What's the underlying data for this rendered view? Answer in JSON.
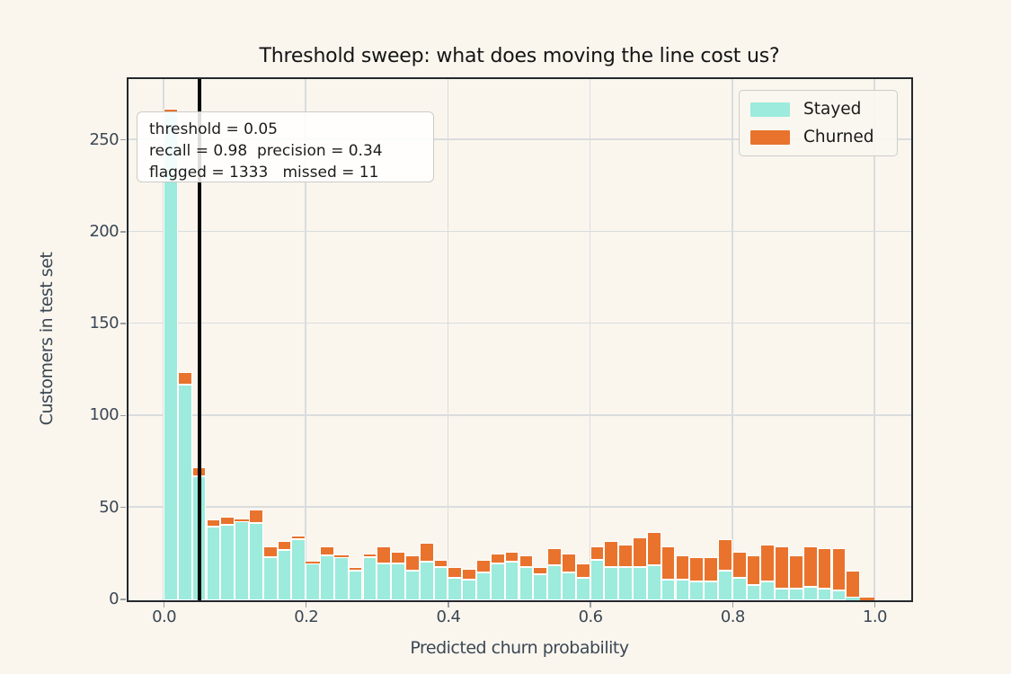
{
  "title": "Threshold sweep: what does moving the line cost us?",
  "axes": {
    "xlabel": "Predicted churn probability",
    "ylabel": "Customers in test set",
    "x_tick_labels": [
      "0.0",
      "0.2",
      "0.4",
      "0.6",
      "0.8",
      "1.0"
    ],
    "x_tick_values": [
      0.0,
      0.2,
      0.4,
      0.6,
      0.8,
      1.0
    ],
    "y_tick_labels": [
      "0",
      "50",
      "100",
      "150",
      "200",
      "250"
    ],
    "y_tick_values": [
      0,
      50,
      100,
      150,
      200,
      250
    ]
  },
  "annotation": {
    "line1": "threshold = 0.05",
    "line2": "recall = 0.98  precision = 0.34",
    "line3": "flagged = 1333   missed = 11"
  },
  "legend": {
    "items": [
      {
        "label": "Stayed",
        "color": "#9CEBDC"
      },
      {
        "label": "Churned",
        "color": "#E9732D"
      }
    ]
  },
  "threshold": {
    "value": 0.05
  },
  "colors": {
    "stayed": "#9CEBDC",
    "churned": "#E9732D",
    "background": "#FAF6EE",
    "grid": "#DADCDE",
    "spine": "#24282d",
    "tick_text": "#3B4754",
    "threshold_line": "#060606",
    "bar_edge": "#FFFFFF"
  },
  "chart_data": {
    "type": "bar",
    "subtype": "stacked-histogram",
    "title": "Threshold sweep: what does moving the line cost us?",
    "xlabel": "Predicted churn probability",
    "ylabel": "Customers in test set",
    "bin_start": 0.0,
    "bin_width": 0.02,
    "n_bins": 50,
    "xlim": [
      -0.05,
      1.05
    ],
    "ylim": [
      0,
      283
    ],
    "grid": true,
    "legend_position": "upper right",
    "threshold_line_x": 0.05,
    "series": [
      {
        "name": "Stayed",
        "values": [
          265,
          117,
          67,
          40,
          41,
          43,
          42,
          23,
          27,
          33,
          20,
          24,
          23,
          16,
          23,
          20,
          20,
          16,
          21,
          18,
          12,
          11,
          15,
          20,
          21,
          18,
          14,
          19,
          15,
          12,
          22,
          18,
          18,
          18,
          19,
          11,
          11,
          10,
          10,
          16,
          12,
          8,
          10,
          6,
          6,
          7,
          6,
          5,
          1,
          0
        ]
      },
      {
        "name": "Churned",
        "values": [
          2,
          7,
          5,
          4,
          4,
          1,
          7,
          6,
          5,
          2,
          1,
          5,
          1,
          2,
          2,
          9,
          6,
          8,
          10,
          4,
          6,
          6,
          7,
          5,
          5,
          6,
          4,
          9,
          10,
          8,
          7,
          14,
          12,
          16,
          18,
          18,
          13,
          13,
          13,
          17,
          14,
          16,
          20,
          23,
          18,
          22,
          22,
          23,
          15,
          1
        ]
      }
    ]
  }
}
